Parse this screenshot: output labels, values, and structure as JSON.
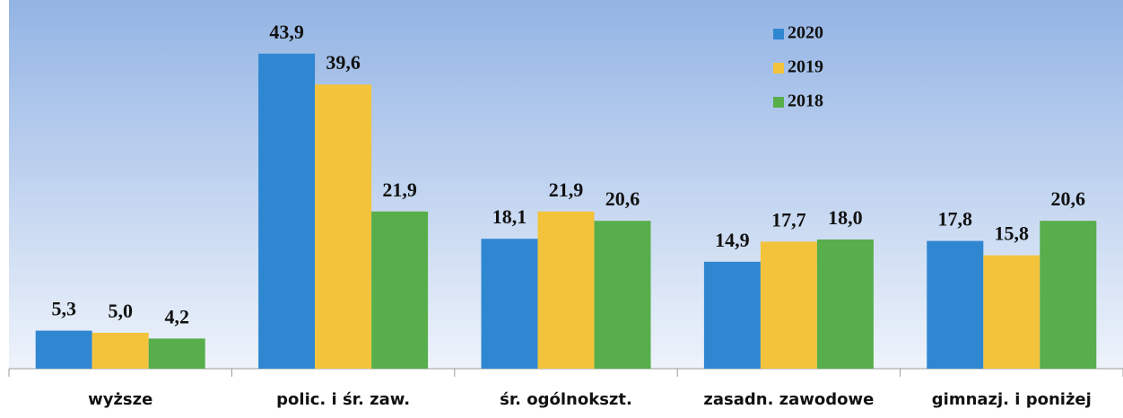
{
  "chart_data": {
    "type": "bar",
    "categories": [
      "wyższe",
      "polic. i śr. zaw.",
      "śr. ogólnokszt.",
      "zasadn. zawodowe",
      "gimnazj. i poniżej"
    ],
    "series": [
      {
        "name": "2020",
        "color": "#2f87d1",
        "values": [
          5.3,
          43.9,
          18.1,
          14.9,
          17.8
        ],
        "value_labels": [
          "5,3",
          "43,9",
          "18,1",
          "14,9",
          "17,8"
        ]
      },
      {
        "name": "2019",
        "color": "#f4c33c",
        "values": [
          5.0,
          39.6,
          21.9,
          17.7,
          15.8
        ],
        "value_labels": [
          "5,0",
          "39,6",
          "21,9",
          "17,7",
          "15,8"
        ]
      },
      {
        "name": "2018",
        "color": "#57ae4b",
        "values": [
          4.2,
          21.9,
          20.6,
          18.0,
          20.6
        ],
        "value_labels": [
          "4,2",
          "21,9",
          "20,6",
          "18,0",
          "20,6"
        ]
      }
    ],
    "ylim": [
      0,
      50
    ]
  }
}
